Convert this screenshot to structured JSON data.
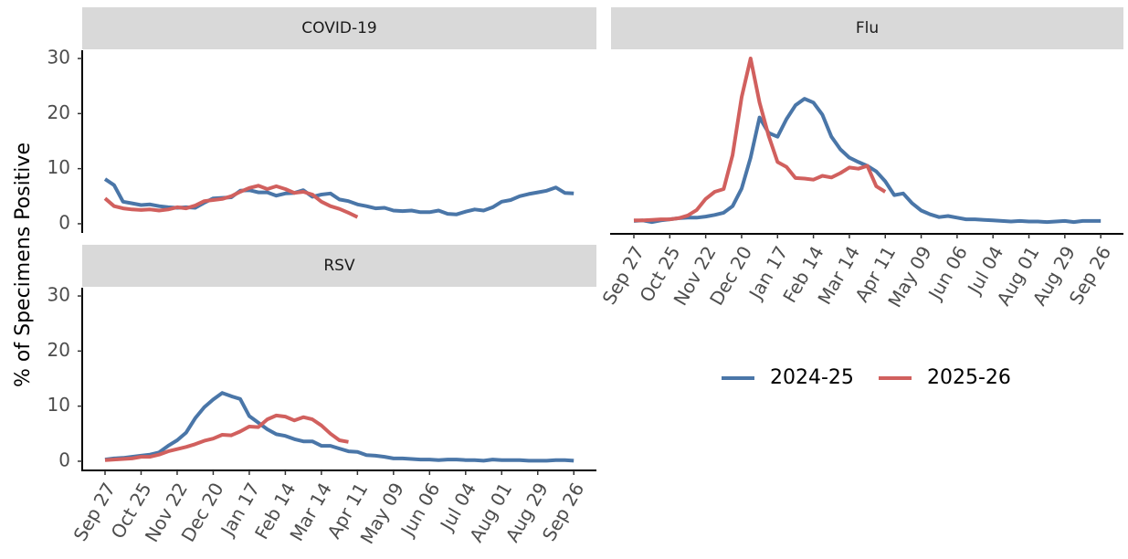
{
  "y_axis_label": "% of Specimens Positive",
  "chart_data": [
    {
      "type": "line",
      "title": "COVID-19",
      "ylim": [
        -1.5,
        31.5
      ],
      "yticks": [
        0,
        10,
        20,
        30
      ],
      "series": [
        {
          "name": "2024-25",
          "color": "#4a76a8",
          "values": [
            8.1,
            7,
            4,
            3.7,
            3.4,
            3.5,
            3.2,
            3,
            2.9,
            3,
            2.9,
            3.8,
            4.6,
            4.7,
            4.8,
            6,
            6.1,
            5.7,
            5.7,
            5.1,
            5.5,
            5.6,
            6.1,
            4.9,
            5.3,
            5.5,
            4.4,
            4.1,
            3.5,
            3.2,
            2.8,
            2.9,
            2.4,
            2.3,
            2.4,
            2.1,
            2.1,
            2.4,
            1.8,
            1.7,
            2.2,
            2.6,
            2.4,
            3,
            4,
            4.3,
            5,
            5.4,
            5.7,
            6,
            6.6,
            5.6,
            5.5
          ]
        },
        {
          "name": "2025-26",
          "color": "#d1605e",
          "values": [
            4.6,
            3.2,
            2.8,
            2.6,
            2.5,
            2.6,
            2.4,
            2.6,
            3,
            2.8,
            3.3,
            4.1,
            4.3,
            4.5,
            5,
            5.8,
            6.5,
            6.9,
            6.3,
            6.8,
            6.3,
            5.6,
            5.8,
            5.3,
            4.0,
            3.2,
            2.7,
            2.0,
            1.2,
            null,
            null,
            null,
            null,
            null,
            null,
            null,
            null,
            null,
            null,
            null,
            null,
            null,
            null,
            null,
            null,
            null,
            null,
            null,
            null,
            null,
            null,
            null,
            null
          ]
        }
      ]
    },
    {
      "type": "line",
      "title": "Flu",
      "categories": [
        "Sep 27",
        null,
        null,
        null,
        "Oct 25",
        null,
        null,
        null,
        "Nov 22",
        null,
        null,
        null,
        "Dec 20",
        null,
        null,
        null,
        "Jan 17",
        null,
        null,
        null,
        "Feb 14",
        null,
        null,
        null,
        "Mar 14",
        null,
        null,
        null,
        "Apr 11",
        null,
        null,
        null,
        "May 09",
        null,
        null,
        null,
        "Jun 06",
        null,
        null,
        null,
        "Jul 04",
        null,
        null,
        null,
        "Aug 01",
        null,
        null,
        null,
        "Aug 29",
        null,
        null,
        null,
        "Sep 26"
      ],
      "series": [
        {
          "name": "2024-25",
          "color": "#4a76a8",
          "values": [
            0.5,
            0.6,
            0.3,
            0.6,
            0.8,
            1,
            1.1,
            1.1,
            1.3,
            1.6,
            2,
            3.2,
            6.4,
            12,
            19.3,
            16.5,
            15.8,
            19,
            21.5,
            22.7,
            22,
            19.8,
            15.8,
            13.5,
            12,
            11.2,
            10.5,
            9.5,
            7.7,
            5.2,
            5.5,
            3.7,
            2.4,
            1.7,
            1.2,
            1.4,
            1.1,
            0.8,
            0.8,
            0.7,
            0.6,
            0.5,
            0.4,
            0.5,
            0.4,
            0.4,
            0.3,
            0.4,
            0.5,
            0.3,
            0.5,
            0.5,
            0.5
          ]
        },
        {
          "name": "2025-26",
          "color": "#d1605e",
          "values": [
            0.6,
            0.6,
            0.7,
            0.8,
            0.8,
            1,
            1.5,
            2.5,
            4.5,
            5.8,
            6.3,
            12.5,
            23,
            30,
            22,
            16,
            11.2,
            10.3,
            8.3,
            8.2,
            8,
            8.7,
            8.4,
            9.2,
            10.2,
            10,
            10.5,
            6.8,
            5.8,
            null,
            null,
            null,
            null,
            null,
            null,
            null,
            null,
            null,
            null,
            null,
            null,
            null,
            null,
            null,
            null,
            null,
            null,
            null,
            null,
            null,
            null,
            null,
            null
          ]
        }
      ]
    },
    {
      "type": "line",
      "title": "RSV",
      "categories": [
        "Sep 27",
        null,
        null,
        null,
        "Oct 25",
        null,
        null,
        null,
        "Nov 22",
        null,
        null,
        null,
        "Dec 20",
        null,
        null,
        null,
        "Jan 17",
        null,
        null,
        null,
        "Feb 14",
        null,
        null,
        null,
        "Mar 14",
        null,
        null,
        null,
        "Apr 11",
        null,
        null,
        null,
        "May 09",
        null,
        null,
        null,
        "Jun 06",
        null,
        null,
        null,
        "Jul 04",
        null,
        null,
        null,
        "Aug 01",
        null,
        null,
        null,
        "Aug 29",
        null,
        null,
        null,
        "Sep 26"
      ],
      "ylim": [
        -1.5,
        31.5
      ],
      "yticks": [
        0,
        10,
        20,
        30
      ],
      "series": [
        {
          "name": "2024-25",
          "color": "#4a76a8",
          "values": [
            0.3,
            0.5,
            0.6,
            0.8,
            1,
            1.2,
            1.6,
            2.8,
            3.8,
            5.2,
            7.8,
            9.8,
            11.2,
            12.4,
            11.8,
            11.3,
            8.2,
            7,
            5.8,
            4.9,
            4.6,
            4,
            3.6,
            3.6,
            2.8,
            2.8,
            2.3,
            1.8,
            1.7,
            1.1,
            1,
            0.8,
            0.5,
            0.5,
            0.4,
            0.3,
            0.3,
            0.2,
            0.3,
            0.3,
            0.2,
            0.2,
            0.1,
            0.3,
            0.2,
            0.2,
            0.2,
            0.1,
            0.1,
            0.1,
            0.2,
            0.2,
            0.1
          ]
        },
        {
          "name": "2025-26",
          "color": "#d1605e",
          "values": [
            0.2,
            0.3,
            0.4,
            0.5,
            0.8,
            0.8,
            1.2,
            1.8,
            2.2,
            2.6,
            3.1,
            3.7,
            4.1,
            4.8,
            4.7,
            5.4,
            6.3,
            6.2,
            7.6,
            8.3,
            8.1,
            7.4,
            8,
            7.6,
            6.5,
            5,
            3.8,
            3.5,
            null,
            null,
            null,
            null,
            null,
            null,
            null,
            null,
            null,
            null,
            null,
            null,
            null,
            null,
            null,
            null,
            null,
            null,
            null,
            null,
            null,
            null,
            null,
            null,
            null
          ]
        }
      ]
    }
  ]
}
